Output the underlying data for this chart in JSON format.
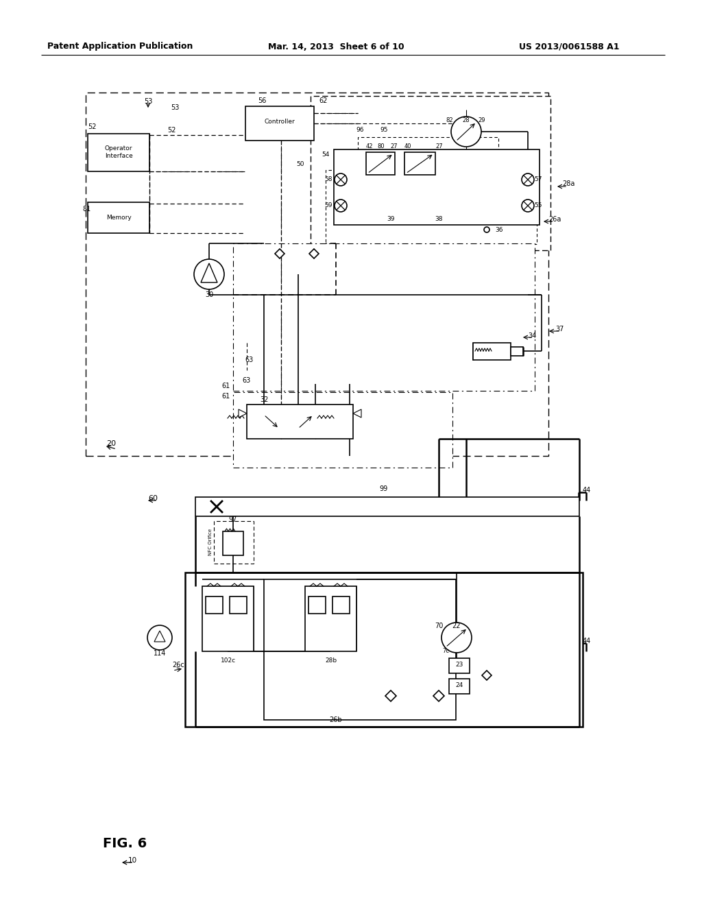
{
  "header_left": "Patent Application Publication",
  "header_mid": "Mar. 14, 2013  Sheet 6 of 10",
  "header_right": "US 2013/0061588 A1",
  "fig_label": "FIG. 6",
  "bg_color": "#ffffff",
  "line_color": "#000000"
}
